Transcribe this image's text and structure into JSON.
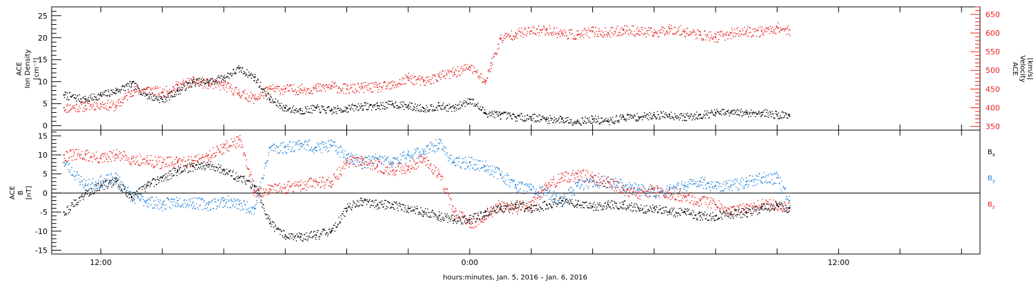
{
  "chart_data": [
    {
      "type": "scatter",
      "panel": "top",
      "left_axis_label": [
        "ACE",
        "Ion Density",
        "[cm⁻³]"
      ],
      "right_axis_label": [
        "ACE",
        "Velocity",
        "[km/s]"
      ],
      "left_ylim": [
        -1,
        27
      ],
      "left_ticks": [
        0,
        5,
        10,
        15,
        20,
        25
      ],
      "right_ylim": [
        340,
        670
      ],
      "right_ticks": [
        350,
        400,
        450,
        500,
        550,
        600,
        650
      ],
      "series": [
        {
          "name": "Ion Density",
          "axis": "left",
          "color": "#000000",
          "x": [
            -13.2,
            -12.5,
            -12.0,
            -11.5,
            -11.0,
            -10.5,
            -10.0,
            -9.5,
            -9.0,
            -8.5,
            -8.0,
            -7.5,
            -7.0,
            -6.5,
            -6.0,
            -5.5,
            -5.0,
            -4.5,
            -4.0,
            -3.5,
            -3.0,
            -2.5,
            -2.0,
            -1.5,
            -1.0,
            -0.5,
            0.0,
            0.5,
            1.0,
            1.5,
            2.0,
            2.5,
            3.0,
            3.5,
            4.0,
            4.5,
            5.0,
            5.5,
            6.0,
            6.5,
            7.0,
            7.5,
            8.0,
            8.5,
            9.0,
            9.5,
            10.0,
            10.4
          ],
          "y": [
            7,
            6,
            7,
            8,
            9.5,
            7,
            6,
            8,
            10,
            10,
            11,
            13,
            11,
            6,
            4,
            3.5,
            4,
            3.5,
            4,
            4.5,
            4.5,
            5,
            4.5,
            4,
            4.5,
            4,
            6,
            3,
            2.5,
            2,
            2,
            1.5,
            1.5,
            1,
            1.5,
            1,
            2,
            2,
            2.5,
            2.5,
            2,
            2.5,
            3,
            3,
            3,
            3,
            2.5,
            2.5
          ]
        },
        {
          "name": "Velocity",
          "axis": "right",
          "color": "#e8201e",
          "x": [
            -13.2,
            -12.5,
            -12.0,
            -11.5,
            -11.0,
            -10.5,
            -10.0,
            -9.5,
            -9.0,
            -8.5,
            -8.0,
            -7.5,
            -7.0,
            -6.5,
            -6.0,
            -5.5,
            -5.0,
            -4.5,
            -4.0,
            -3.5,
            -3.0,
            -2.5,
            -2.0,
            -1.5,
            -1.0,
            -0.5,
            0.0,
            0.5,
            0.7,
            1.0,
            1.5,
            2.0,
            2.5,
            3.0,
            3.5,
            4.0,
            4.5,
            5.0,
            5.5,
            6.0,
            6.5,
            7.0,
            7.5,
            8.0,
            8.5,
            9.0,
            9.5,
            10.0,
            10.4
          ],
          "y": [
            400,
            405,
            410,
            405,
            445,
            450,
            440,
            460,
            470,
            465,
            460,
            440,
            425,
            450,
            450,
            450,
            452,
            458,
            450,
            455,
            455,
            460,
            480,
            470,
            485,
            495,
            510,
            470,
            520,
            585,
            600,
            605,
            610,
            600,
            595,
            605,
            600,
            610,
            605,
            600,
            612,
            605,
            595,
            590,
            600,
            605,
            605,
            615,
            608
          ]
        }
      ]
    },
    {
      "type": "line",
      "panel": "bottom",
      "left_axis_label": [
        "ACE",
        "B",
        "[nT]"
      ],
      "ylim": [
        -16,
        16.5
      ],
      "ticks": [
        -15,
        -10,
        -5,
        0,
        5,
        10,
        15
      ],
      "zero_line": true,
      "series": [
        {
          "name": "Bx",
          "label_main": "B",
          "label_sub": "x",
          "color": "#000000",
          "x": [
            -13.2,
            -12.5,
            -12.0,
            -11.5,
            -11.0,
            -10.5,
            -10.0,
            -9.5,
            -9.0,
            -8.5,
            -8.0,
            -7.5,
            -7.0,
            -6.5,
            -6.0,
            -5.5,
            -5.0,
            -4.5,
            -4.0,
            -3.5,
            -3.0,
            -2.5,
            -2.0,
            -1.5,
            -1.0,
            -0.5,
            0.0,
            0.5,
            1.0,
            1.5,
            2.0,
            2.5,
            3.0,
            3.5,
            4.0,
            4.5,
            5.0,
            5.5,
            6.0,
            6.5,
            7.0,
            7.5,
            8.0,
            8.5,
            9.0,
            9.5,
            10.0,
            10.4
          ],
          "y": [
            -5,
            0,
            2,
            3,
            -1,
            2,
            4,
            6,
            7,
            7.5,
            6,
            4,
            2,
            -8,
            -11,
            -11.5,
            -11,
            -10,
            -4,
            -2,
            -3,
            -3,
            -4,
            -5,
            -6,
            -7,
            -7,
            -5,
            -4,
            -3,
            -4,
            -3,
            -2,
            -3,
            -3.5,
            -3,
            -3,
            -4,
            -4,
            -5,
            -5,
            -6,
            -6,
            -5.5,
            -5,
            -4,
            -3,
            -4
          ]
        },
        {
          "name": "By",
          "label_main": "B",
          "label_sub": "y",
          "color": "#1e7fd8",
          "x": [
            -13.2,
            -12.5,
            -12.0,
            -11.5,
            -11.0,
            -10.5,
            -10.0,
            -9.5,
            -9.0,
            -8.5,
            -8.0,
            -7.5,
            -7.0,
            -6.5,
            -6.0,
            -5.5,
            -5.0,
            -4.5,
            -4.0,
            -3.5,
            -3.0,
            -2.5,
            -2.0,
            -1.5,
            -1.0,
            -0.5,
            0.0,
            0.5,
            1.0,
            1.5,
            2.0,
            2.5,
            3.0,
            3.5,
            4.0,
            4.5,
            5.0,
            5.5,
            6.0,
            6.5,
            7.0,
            7.5,
            8.0,
            8.5,
            9.0,
            9.5,
            10.0,
            10.4
          ],
          "y": [
            8,
            2,
            3,
            4,
            -1,
            -2,
            -3,
            -2,
            -2.5,
            -3,
            -2,
            -3,
            -4,
            12,
            12,
            13,
            12,
            12.5,
            10,
            8,
            9,
            8,
            10,
            11,
            13,
            8,
            8,
            7,
            5,
            2,
            1,
            0,
            -2,
            2,
            3,
            3,
            2,
            1,
            0,
            1,
            2,
            3,
            2,
            2,
            3,
            4,
            4,
            -2
          ]
        },
        {
          "name": "Bz",
          "label_main": "B",
          "label_sub": "z",
          "color": "#e8201e",
          "x": [
            -13.2,
            -12.5,
            -12.0,
            -11.5,
            -11.0,
            -10.5,
            -10.0,
            -9.5,
            -9.0,
            -8.5,
            -8.0,
            -7.5,
            -7.0,
            -6.5,
            -6.0,
            -5.5,
            -5.0,
            -4.5,
            -4.0,
            -3.5,
            -3.0,
            -2.5,
            -2.0,
            -1.5,
            -1.0,
            -0.5,
            0.0,
            0.5,
            1.0,
            1.5,
            2.0,
            2.5,
            3.0,
            3.5,
            4.0,
            4.5,
            5.0,
            5.5,
            6.0,
            6.5,
            7.0,
            7.5,
            8.0,
            8.5,
            9.0,
            9.5,
            10.0,
            10.4
          ],
          "y": [
            10,
            10,
            9,
            10,
            9,
            8.5,
            8,
            8,
            8.5,
            10,
            12,
            14,
            0,
            1,
            1.5,
            2,
            3,
            3,
            8,
            9,
            7,
            6,
            7,
            9,
            5,
            -5,
            -8,
            -6,
            -3,
            -4,
            -3,
            2,
            4,
            5,
            4,
            3,
            1,
            0,
            1,
            0,
            -1,
            -2,
            -3,
            -5,
            -4,
            -3,
            -3,
            -4
          ]
        }
      ]
    }
  ],
  "x_axis": {
    "title": "hours:minutes, Jan.  5, 2016 – Jan.  6, 2016",
    "xlim": [
      -13.6,
      16.6
    ],
    "tick_labels": [
      {
        "x": -12,
        "label": "12:00"
      },
      {
        "x": 0,
        "label": "0:00"
      },
      {
        "x": 12,
        "label": "12:00"
      }
    ],
    "major_tick_step": 2
  }
}
